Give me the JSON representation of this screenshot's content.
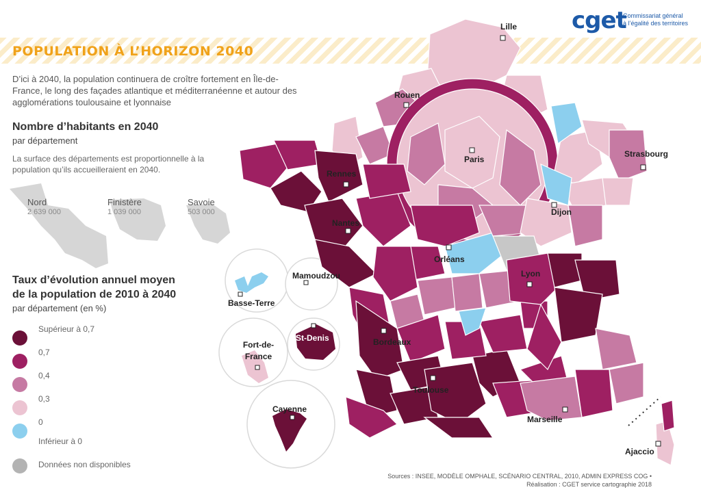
{
  "header": {
    "title": "POPULATION À L’HORIZON 2040",
    "intro": "D’ici à 2040, la population continuera de croître fortement en Île-de-France, le long des façades atlantique et méditerranéenne et autour des agglomérations toulousaine et lyonnaise"
  },
  "logo": {
    "brand": "cget",
    "line1": "Commissariat général",
    "line2": "à l’égalité des territoires"
  },
  "inhabitants": {
    "title": "Nombre d’habitants en 2040",
    "subtitle": "par département",
    "note": "La surface des départements est proportionnelle à la population qu’ils accueilleraient en 2040.",
    "samples": [
      {
        "name": "Nord",
        "value": "2 639 000"
      },
      {
        "name": "Finistère",
        "value": "1 039 000"
      },
      {
        "name": "Savoie",
        "value": "503 000"
      }
    ]
  },
  "legend": {
    "title_line1": "Taux d’évolution annuel moyen",
    "title_line2": "de la population de 2010 à 2040",
    "subtitle": "par département (en %)",
    "items": [
      {
        "label": "Supérieur à 0,7",
        "color": "#6b1038"
      },
      {
        "label": "0,7",
        "color": "#9e2062"
      },
      {
        "label": "0,4",
        "color": "#c67aa3"
      },
      {
        "label": "0,3",
        "color": "#ecc4d2"
      },
      {
        "label": "0",
        "color": "#8ccfee"
      },
      {
        "label": "Inférieur à 0",
        "color": "#c7c7c7"
      },
      {
        "label": "Données non disponibles",
        "color": "#b3b3b3"
      }
    ]
  },
  "cities": {
    "lille": "Lille",
    "rouen": "Rouen",
    "paris": "Paris",
    "strasbourg": "Strasbourg",
    "rennes": "Rennes",
    "nantes": "Nantes",
    "dijon": "Dijon",
    "orleans": "Orléans",
    "lyon": "Lyon",
    "bordeaux": "Bordeaux",
    "toulouse": "Toulouse",
    "marseille": "Marseille",
    "ajaccio": "Ajaccio",
    "mamoudzou": "Mamoudzou",
    "basse_terre": "Basse-Terre",
    "st_denis": "St-Denis",
    "fort_de_france": "Fort-de-France",
    "cayenne": "Cayenne"
  },
  "sources": {
    "line1": "Sources : INSEE, MODÈLE OMPHALE, SCÉNARIO CENTRAL, 2010, ADMIN EXPRESS COG •",
    "line2": "Réalisation : CGET service cartographie 2018"
  }
}
